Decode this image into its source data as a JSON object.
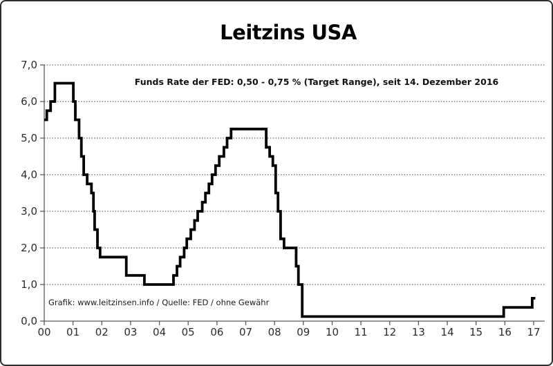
{
  "frame": {
    "background": "#ffffff",
    "border_color": "#2e2e2e"
  },
  "chart_data": {
    "type": "line",
    "subtype": "step",
    "title": "Leitzins USA",
    "subtitle": "Funds Rate der FED: 0,50 - 0,75 % (Target Range), seit 14. Dezember 2016",
    "source": "Grafik: www.leitzinsen.info / Quelle: FED / ohne Gewähr",
    "line_color": "#000000",
    "grid": {
      "horizontal": true,
      "style": "dotted",
      "vertical": false
    },
    "legend": "none",
    "xlim": [
      2000,
      2017.06
    ],
    "ylim": [
      0,
      7
    ],
    "y_tick_values": [
      0,
      1,
      2,
      3,
      4,
      5,
      6,
      7
    ],
    "y_tick_labels": [
      "0,0",
      "1,0",
      "2,0",
      "3,0",
      "4,0",
      "5,0",
      "6,0",
      "7,0"
    ],
    "x_tick_values": [
      2000,
      2001,
      2002,
      2003,
      2004,
      2005,
      2006,
      2007,
      2008,
      2009,
      2010,
      2011,
      2012,
      2013,
      2014,
      2015,
      2016,
      2017
    ],
    "x_tick_labels": [
      "00",
      "01",
      "02",
      "03",
      "04",
      "05",
      "06",
      "07",
      "08",
      "09",
      "10",
      "11",
      "12",
      "13",
      "14",
      "15",
      "16",
      "17"
    ],
    "series": [
      {
        "name": "Funds Rate der FED (%)",
        "end_x": 2017.06,
        "steps": [
          [
            2000.0,
            5.5
          ],
          [
            2000.09,
            5.75
          ],
          [
            2000.22,
            6.0
          ],
          [
            2000.37,
            6.5
          ],
          [
            2001.01,
            6.0
          ],
          [
            2001.08,
            5.5
          ],
          [
            2001.21,
            5.0
          ],
          [
            2001.29,
            4.5
          ],
          [
            2001.37,
            4.0
          ],
          [
            2001.49,
            3.75
          ],
          [
            2001.64,
            3.5
          ],
          [
            2001.71,
            3.0
          ],
          [
            2001.75,
            2.5
          ],
          [
            2001.85,
            2.0
          ],
          [
            2001.94,
            1.75
          ],
          [
            2002.85,
            1.25
          ],
          [
            2003.48,
            1.0
          ],
          [
            2004.49,
            1.25
          ],
          [
            2004.61,
            1.5
          ],
          [
            2004.72,
            1.75
          ],
          [
            2004.86,
            2.0
          ],
          [
            2004.95,
            2.25
          ],
          [
            2005.09,
            2.5
          ],
          [
            2005.22,
            2.75
          ],
          [
            2005.33,
            3.0
          ],
          [
            2005.49,
            3.25
          ],
          [
            2005.6,
            3.5
          ],
          [
            2005.72,
            3.75
          ],
          [
            2005.83,
            4.0
          ],
          [
            2005.95,
            4.25
          ],
          [
            2006.08,
            4.5
          ],
          [
            2006.24,
            4.75
          ],
          [
            2006.35,
            5.0
          ],
          [
            2006.49,
            5.25
          ],
          [
            2007.71,
            4.75
          ],
          [
            2007.83,
            4.5
          ],
          [
            2007.94,
            4.25
          ],
          [
            2008.04,
            3.5
          ],
          [
            2008.12,
            3.0
          ],
          [
            2008.21,
            2.25
          ],
          [
            2008.33,
            2.0
          ],
          [
            2008.75,
            1.5
          ],
          [
            2008.83,
            1.0
          ],
          [
            2008.96,
            0.125
          ],
          [
            2015.96,
            0.375
          ],
          [
            2016.95,
            0.625
          ]
        ]
      }
    ]
  }
}
